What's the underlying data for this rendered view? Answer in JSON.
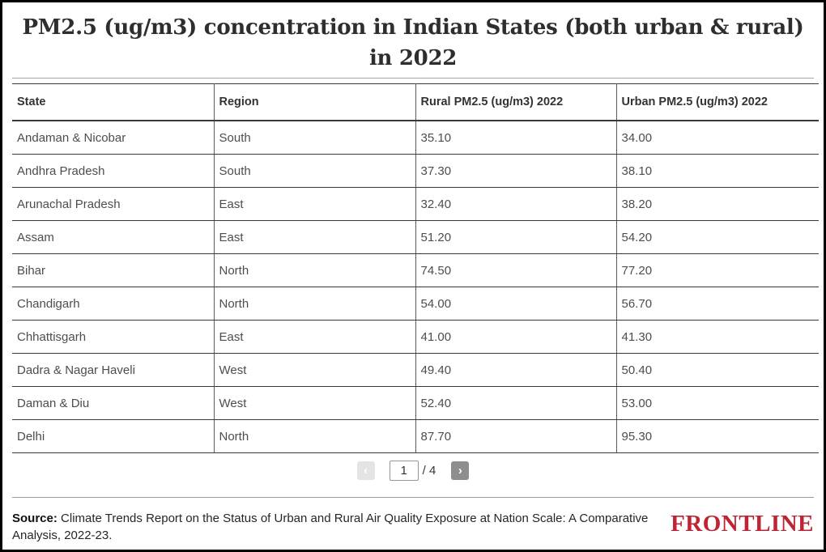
{
  "header": {
    "title_line1": "PM2.5 (ug/m3) concentration in Indian States (both urban & rural)",
    "title_line2": "in 2022"
  },
  "chart_data": {
    "type": "table",
    "title": "PM2.5 (ug/m3) concentration in Indian States (both urban & rural) in 2022",
    "columns": [
      "State",
      "Region",
      "Rural PM2.5 (ug/m3) 2022",
      "Urban PM2.5 (ug/m3) 2022"
    ],
    "rows": [
      [
        "Andaman & Nicobar",
        "South",
        "35.10",
        "34.00"
      ],
      [
        "Andhra Pradesh",
        "South",
        "37.30",
        "38.10"
      ],
      [
        "Arunachal Pradesh",
        "East",
        "32.40",
        "38.20"
      ],
      [
        "Assam",
        "East",
        "51.20",
        "54.20"
      ],
      [
        "Bihar",
        "North",
        "74.50",
        "77.20"
      ],
      [
        "Chandigarh",
        "North",
        "54.00",
        "56.70"
      ],
      [
        "Chhattisgarh",
        "East",
        "41.00",
        "41.30"
      ],
      [
        "Dadra & Nagar Haveli",
        "West",
        "49.40",
        "50.40"
      ],
      [
        "Daman & Diu",
        "West",
        "52.40",
        "53.00"
      ],
      [
        "Delhi",
        "North",
        "87.70",
        "95.30"
      ]
    ]
  },
  "pagination": {
    "prev_icon": "‹",
    "page_value": "1",
    "total_label": "/ 4",
    "next_icon": "›"
  },
  "footer": {
    "source_label": "Source:",
    "source_text": "Climate Trends Report on the Status of Urban and Rural Air Quality Exposure at Nation Scale: A Comparative Analysis, 2022-23.",
    "brand": "FRONTLINE"
  },
  "colors": {
    "brand_red": "#be2433",
    "table_border": "#383838",
    "prev_button_bg": "#e4e4e4",
    "next_button_bg": "#8e8e8e"
  }
}
